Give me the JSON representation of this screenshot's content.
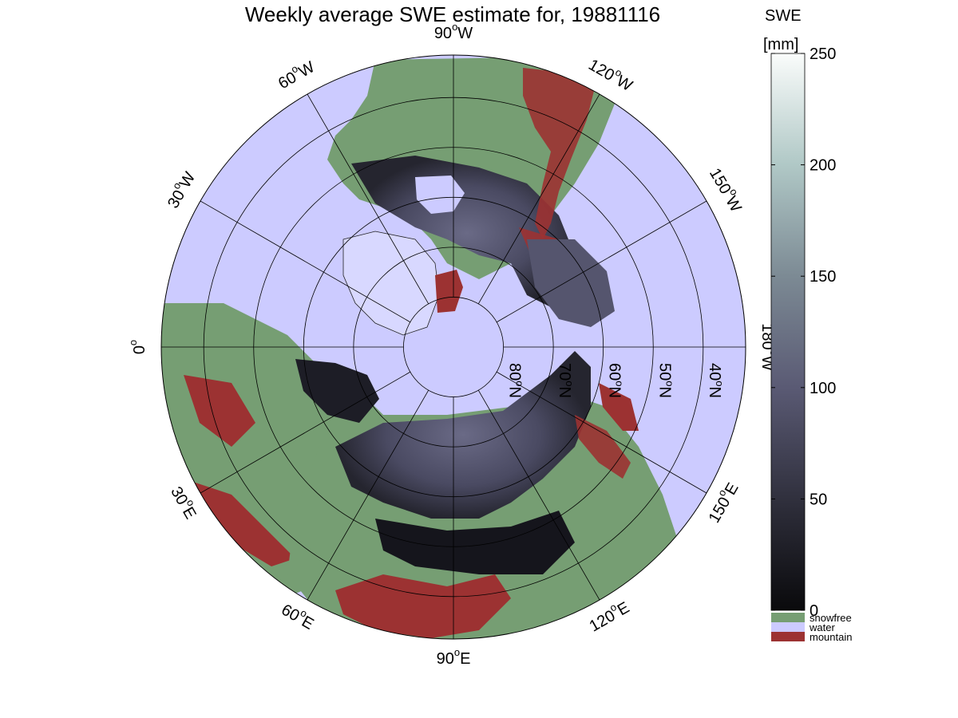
{
  "title": "Weekly average SWE estimate for, 19881116",
  "colorbar": {
    "title_line1": "SWE",
    "title_line2": "[mm]",
    "ticks": [
      "250",
      "200",
      "150",
      "100",
      "50",
      "0"
    ],
    "tick_values": [
      250,
      200,
      150,
      100,
      50,
      0
    ],
    "range": [
      0,
      250
    ],
    "categories": [
      {
        "label": "snowfree",
        "color": "#769e73"
      },
      {
        "label": "water",
        "color": "#cccbff"
      },
      {
        "label": "mountain",
        "color": "#9c3232"
      }
    ]
  },
  "meridian_labels": [
    {
      "deg": "90",
      "dir": "W",
      "lon": -90
    },
    {
      "deg": "120",
      "dir": "W",
      "lon": -120
    },
    {
      "deg": "150",
      "dir": "W",
      "lon": -150
    },
    {
      "deg": "180",
      "dir": "W",
      "lon": 180
    },
    {
      "deg": "150",
      "dir": "E",
      "lon": 150
    },
    {
      "deg": "120",
      "dir": "E",
      "lon": 120
    },
    {
      "deg": "90",
      "dir": "E",
      "lon": 90
    },
    {
      "deg": "60",
      "dir": "E",
      "lon": 60
    },
    {
      "deg": "30",
      "dir": "E",
      "lon": 30
    },
    {
      "deg": "0",
      "dir": "",
      "lon": 0
    },
    {
      "deg": "30",
      "dir": "W",
      "lon": -30
    },
    {
      "deg": "60",
      "dir": "W",
      "lon": -60
    }
  ],
  "parallel_labels": [
    {
      "deg": "80",
      "dir": "N",
      "lat": 80
    },
    {
      "deg": "70",
      "dir": "N",
      "lat": 70
    },
    {
      "deg": "60",
      "dir": "N",
      "lat": 60
    },
    {
      "deg": "50",
      "dir": "N",
      "lat": 50
    },
    {
      "deg": "40",
      "dir": "N",
      "lat": 40
    }
  ],
  "colors": {
    "water": "#cccbff",
    "snowfree": "#769e73",
    "mountain": "#9c3232",
    "snow_low": "#141419",
    "snow_mid": "#4d4d68",
    "snow_high": "#f5f8f6"
  }
}
